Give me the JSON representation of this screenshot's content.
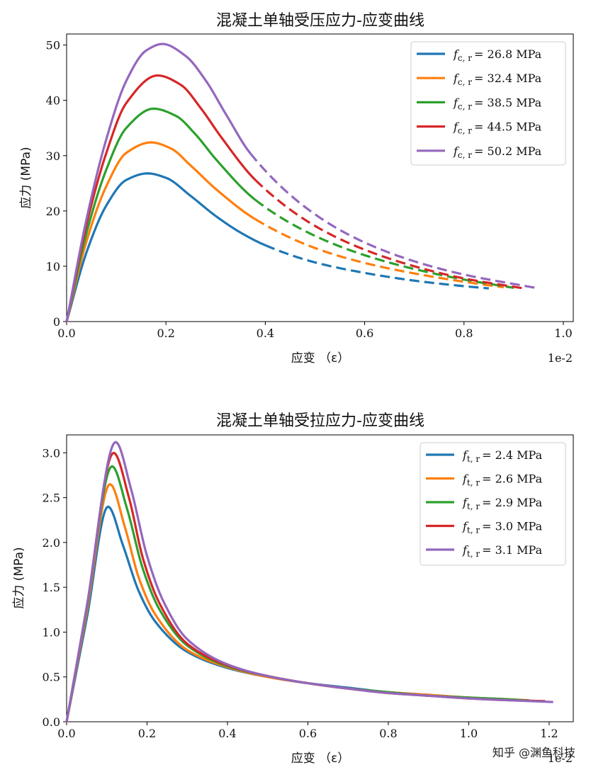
{
  "colors": [
    "#1f77b4",
    "#ff7f0e",
    "#2ca02c",
    "#d62728",
    "#9467bd"
  ],
  "watermark": "知乎 @渊鱼科技",
  "chart_data": [
    {
      "type": "line",
      "title": "混凝土单轴受压应力-应变曲线",
      "xlabel": "应变 （ε）",
      "ylabel": "应力 (MPa)",
      "x_offset_label": "1e-2",
      "xlim": [
        0,
        1.02
      ],
      "ylim": [
        0,
        52
      ],
      "xticks": [
        0.0,
        0.2,
        0.4,
        0.6,
        0.8,
        1.0
      ],
      "xtick_labels": [
        "0.0",
        "0.2",
        "0.4",
        "0.6",
        "0.8",
        "1.0"
      ],
      "yticks": [
        0,
        10,
        20,
        30,
        40,
        50
      ],
      "ytick_labels": [
        "0",
        "10",
        "20",
        "30",
        "40",
        "50"
      ],
      "legend_position": "top-right",
      "solid_segment_end_x": [
        0.4,
        0.38,
        0.38,
        0.38,
        0.37
      ],
      "series": [
        {
          "name": "f_c,r = 26.8 MPa",
          "label_sub": "c, r",
          "label_value": "= 26.8 MPa",
          "x": [
            0,
            0.04,
            0.08,
            0.12,
            0.163,
            0.2,
            0.25,
            0.3,
            0.35,
            0.4,
            0.5,
            0.6,
            0.7,
            0.8,
            0.85
          ],
          "y": [
            0,
            12.5,
            21.0,
            25.6,
            26.8,
            26.0,
            22.7,
            19.1,
            16.1,
            13.8,
            10.7,
            8.8,
            7.4,
            6.4,
            6.0
          ]
        },
        {
          "name": "f_c,r = 32.4 MPa",
          "label_sub": "c, r",
          "label_value": "= 32.4 MPa",
          "x": [
            0,
            0.04,
            0.08,
            0.12,
            0.17,
            0.21,
            0.25,
            0.3,
            0.38,
            0.5,
            0.6,
            0.7,
            0.8,
            0.88
          ],
          "y": [
            0,
            14.5,
            24.5,
            30.5,
            32.4,
            31.3,
            28.2,
            24.0,
            18.5,
            13.3,
            10.6,
            8.7,
            7.2,
            6.2
          ]
        },
        {
          "name": "f_c,r = 38.5 MPa",
          "label_sub": "c, r",
          "label_value": "= 38.5 MPa",
          "x": [
            0,
            0.04,
            0.08,
            0.12,
            0.175,
            0.22,
            0.26,
            0.3,
            0.38,
            0.5,
            0.6,
            0.7,
            0.8,
            0.9
          ],
          "y": [
            0,
            16.0,
            27.5,
            35.0,
            38.5,
            37.2,
            33.8,
            29.4,
            22.0,
            15.5,
            12.0,
            9.5,
            7.6,
            6.1
          ]
        },
        {
          "name": "f_c,r = 44.5 MPa",
          "label_sub": "c, r",
          "label_value": "= 44.5 MPa",
          "x": [
            0,
            0.04,
            0.08,
            0.12,
            0.183,
            0.23,
            0.27,
            0.31,
            0.38,
            0.5,
            0.6,
            0.7,
            0.8,
            0.92
          ],
          "y": [
            0,
            17.5,
            30.5,
            39.5,
            44.5,
            42.8,
            38.6,
            33.5,
            25.6,
            17.3,
            13.0,
            10.0,
            7.8,
            6.0
          ]
        },
        {
          "name": "f_c,r = 50.2 MPa",
          "label_sub": "c, r",
          "label_value": "= 50.2 MPa",
          "x": [
            0,
            0.04,
            0.08,
            0.12,
            0.16,
            0.193,
            0.24,
            0.28,
            0.32,
            0.37,
            0.5,
            0.6,
            0.7,
            0.8,
            0.95
          ],
          "y": [
            0,
            18.5,
            33.0,
            43.5,
            49.0,
            50.2,
            48.0,
            43.6,
            37.6,
            30.4,
            19.4,
            14.3,
            10.9,
            8.5,
            6.0
          ]
        }
      ]
    },
    {
      "type": "line",
      "title": "混凝土单轴受拉应力-应变曲线",
      "xlabel": "应变 （ε）",
      "ylabel": "应力 (MPa)",
      "x_offset_label": "1e-2",
      "xlim": [
        0,
        1.26
      ],
      "ylim": [
        0,
        3.2
      ],
      "xticks": [
        0.0,
        0.2,
        0.4,
        0.6,
        0.8,
        1.0,
        1.2
      ],
      "xtick_labels": [
        "0.0",
        "0.2",
        "0.4",
        "0.6",
        "0.8",
        "1.0",
        "1.2"
      ],
      "yticks": [
        0.0,
        0.5,
        1.0,
        1.5,
        2.0,
        2.5,
        3.0
      ],
      "ytick_labels": [
        "0.0",
        "0.5",
        "1.0",
        "1.5",
        "2.0",
        "2.5",
        "3.0"
      ],
      "legend_position": "top-right",
      "series": [
        {
          "name": "f_t,r = 2.4 MPa",
          "label_sub": "t, r",
          "label_value": "= 2.4 MPa",
          "x": [
            0,
            0.05,
            0.103,
            0.14,
            0.18,
            0.22,
            0.3,
            0.4,
            0.5,
            0.6,
            0.7,
            0.8,
            0.9,
            1.0,
            1.1
          ],
          "y": [
            0,
            1.15,
            2.4,
            1.97,
            1.45,
            1.12,
            0.78,
            0.6,
            0.5,
            0.43,
            0.38,
            0.33,
            0.3,
            0.27,
            0.25
          ]
        },
        {
          "name": "f_t,r = 2.6 MPa",
          "label_sub": "t, r",
          "label_value": "= 2.6 MPa",
          "x": [
            0,
            0.05,
            0.108,
            0.145,
            0.18,
            0.22,
            0.3,
            0.4,
            0.5,
            0.6,
            0.7,
            0.8,
            0.9,
            1.0,
            1.1,
            1.15
          ],
          "y": [
            0,
            1.22,
            2.65,
            2.17,
            1.6,
            1.2,
            0.8,
            0.61,
            0.5,
            0.43,
            0.37,
            0.33,
            0.3,
            0.27,
            0.25,
            0.24
          ]
        },
        {
          "name": "f_t,r = 2.9 MPa",
          "label_sub": "t, r",
          "label_value": "= 2.9 MPa",
          "x": [
            0,
            0.05,
            0.113,
            0.15,
            0.19,
            0.23,
            0.3,
            0.4,
            0.5,
            0.6,
            0.7,
            0.8,
            0.9,
            1.0,
            1.1,
            1.17
          ],
          "y": [
            0,
            1.26,
            2.85,
            2.38,
            1.7,
            1.26,
            0.85,
            0.62,
            0.51,
            0.43,
            0.37,
            0.33,
            0.29,
            0.27,
            0.25,
            0.23
          ]
        },
        {
          "name": "f_t,r = 3.0 MPa",
          "label_sub": "t, r",
          "label_value": "= 3.0 MPa",
          "x": [
            0,
            0.05,
            0.117,
            0.155,
            0.19,
            0.23,
            0.3,
            0.4,
            0.5,
            0.6,
            0.7,
            0.8,
            0.9,
            1.0,
            1.1,
            1.19
          ],
          "y": [
            0,
            1.28,
            3.0,
            2.5,
            1.82,
            1.33,
            0.87,
            0.63,
            0.51,
            0.43,
            0.37,
            0.32,
            0.29,
            0.26,
            0.24,
            0.23
          ]
        },
        {
          "name": "f_t,r = 3.1 MPa",
          "label_sub": "t, r",
          "label_value": "= 3.1 MPa",
          "x": [
            0,
            0.05,
            0.122,
            0.16,
            0.2,
            0.24,
            0.3,
            0.4,
            0.5,
            0.6,
            0.7,
            0.8,
            0.9,
            1.0,
            1.1,
            1.21
          ],
          "y": [
            0,
            1.28,
            3.12,
            2.6,
            1.85,
            1.35,
            0.92,
            0.64,
            0.51,
            0.43,
            0.37,
            0.32,
            0.29,
            0.26,
            0.24,
            0.22
          ]
        }
      ]
    }
  ]
}
